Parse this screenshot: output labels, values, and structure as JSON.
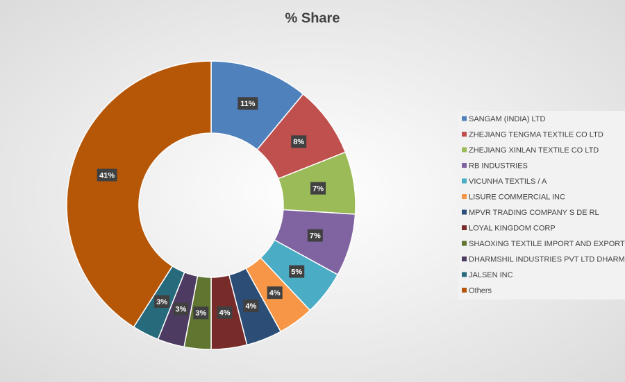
{
  "chart_data": {
    "type": "donut",
    "title": "% Share",
    "categories": [
      "SANGAM (INDIA) LTD",
      "ZHEJIANG TENGMA TEXTILE CO LTD",
      "ZHEJIANG XINLAN TEXTILE CO LTD",
      "RB INDUSTRIES",
      "VICUNHA TEXTILS / A",
      "LISURE COMMERCIAL INC",
      "MPVR TRADING COMPANY S DE RL",
      "LOYAL KINGDOM CORP",
      "SHAOXING TEXTILE IMPORT AND EXPORT CORP",
      "DHARMSHIL INDUSTRIES PVT LTD DHARMSHIL",
      "JALSEN INC",
      "Others"
    ],
    "values": [
      11,
      8,
      7,
      7,
      5,
      4,
      4,
      4,
      3,
      3,
      3,
      41
    ],
    "value_labels": [
      "11%",
      "8%",
      "7%",
      "7%",
      "5%",
      "4%",
      "4%",
      "4%",
      "3%",
      "3%",
      "3%",
      "41%"
    ],
    "colors": [
      "#4f81bd",
      "#c0504d",
      "#9bbb59",
      "#8064a2",
      "#4bacc6",
      "#f79646",
      "#2c4d75",
      "#772c2a",
      "#5f7530",
      "#4d3b62",
      "#276a7c",
      "#b65708"
    ],
    "legend": "right"
  }
}
